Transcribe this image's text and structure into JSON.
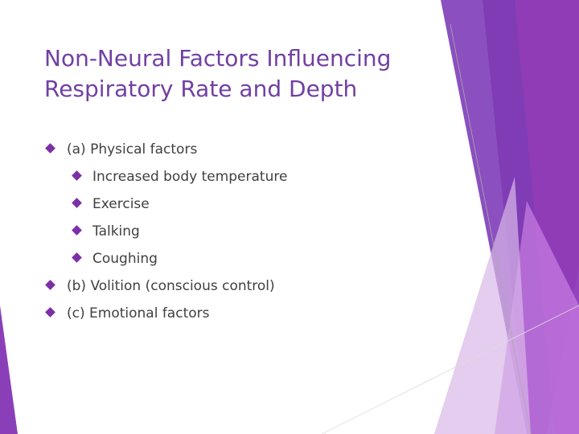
{
  "title": [
    "Non-Neural Factors Influencing",
    "Respiratory Rate and Depth"
  ],
  "items": [
    {
      "text": "(a) Physical factors",
      "subitems": [
        "Increased body temperature",
        "Exercise",
        "Talking",
        "Coughing"
      ]
    },
    {
      "text": "(b) Volition (conscious control)",
      "subitems": []
    },
    {
      "text": "(c) Emotional factors",
      "subitems": []
    }
  ]
}
